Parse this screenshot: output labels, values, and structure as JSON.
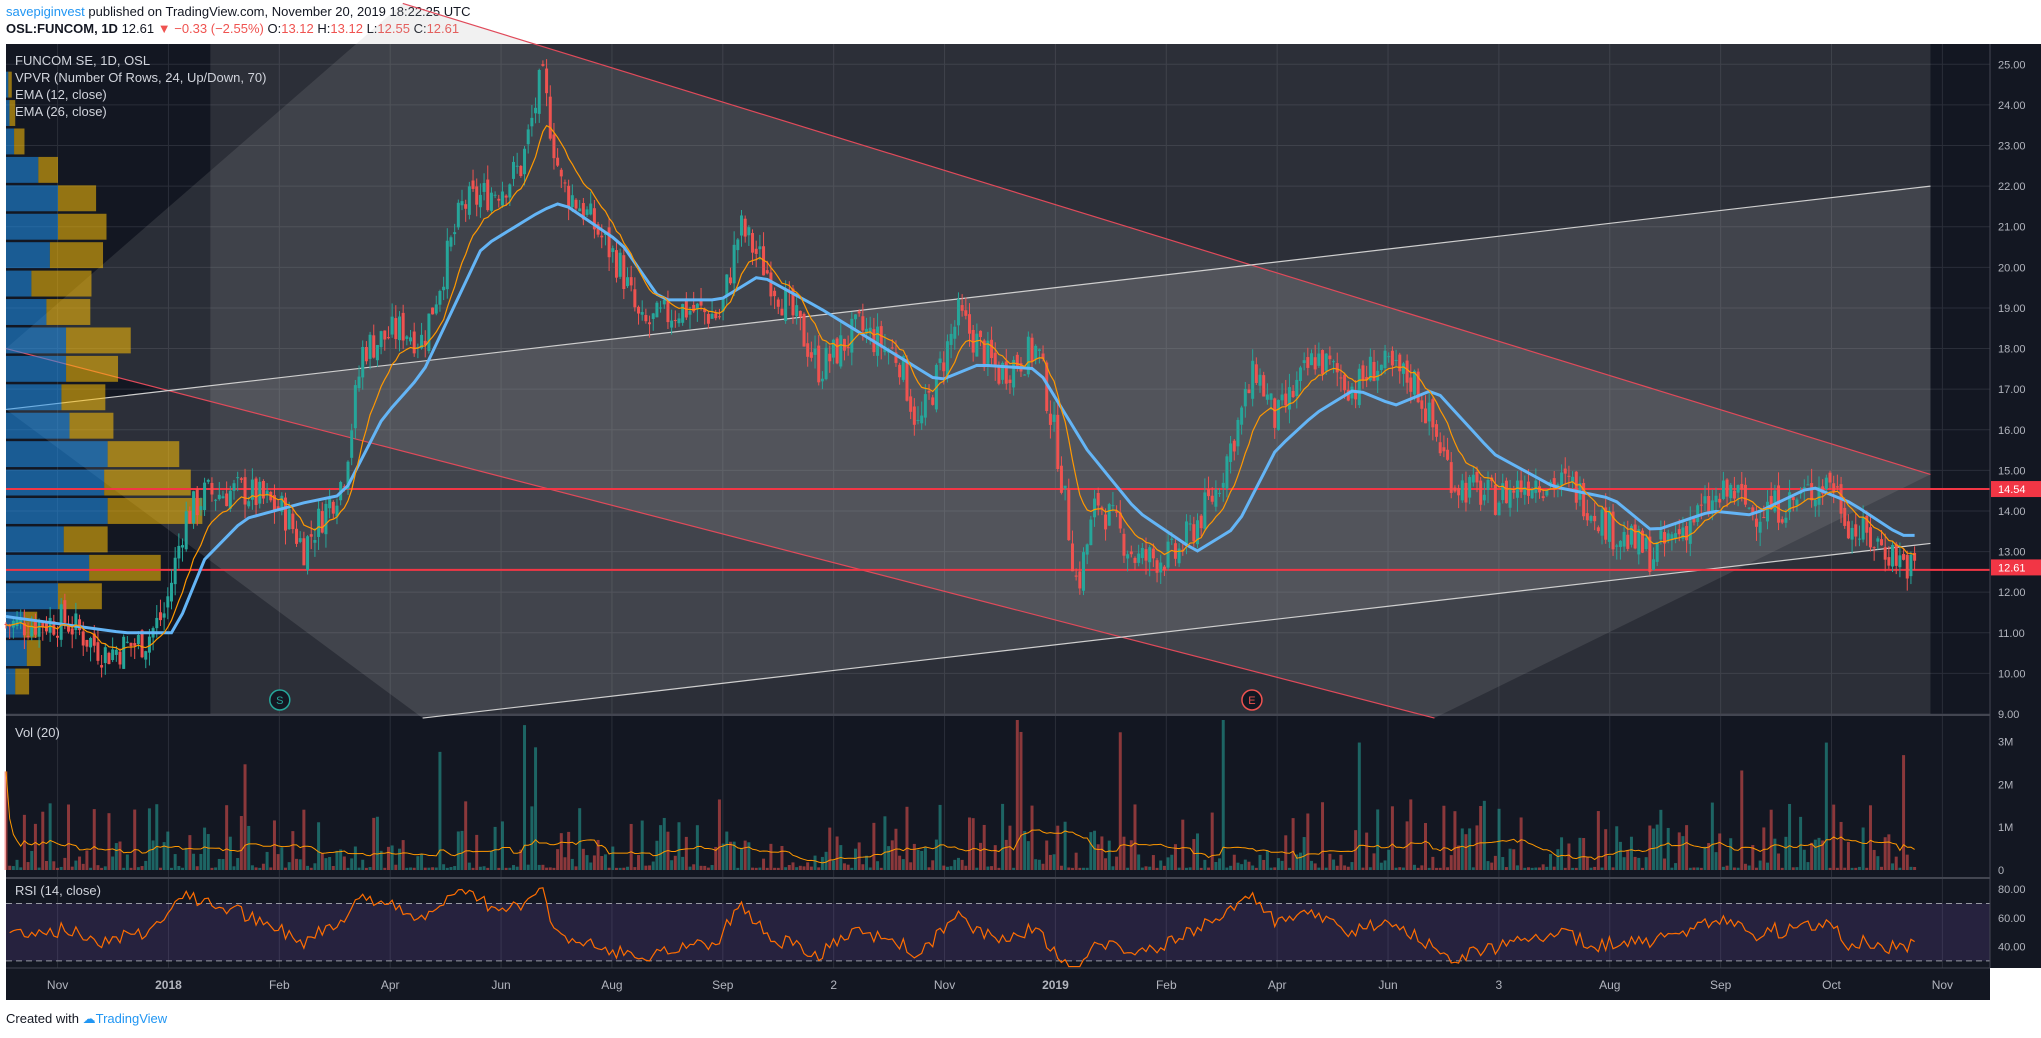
{
  "header": {
    "author": "savepiginvest",
    "published_text": "published on TradingView.com, November 20, 2019 18:22:25 UTC",
    "symbol": "OSL:FUNCOM, 1D",
    "last": "12.61",
    "change": "▼ −0.33 (−2.55%)",
    "ohlc": {
      "o_label": "O:",
      "o": "13.12",
      "h_label": "H:",
      "h": "13.12",
      "l_label": "L:",
      "l": "12.55",
      "c_label": "C:",
      "c": "12.61"
    }
  },
  "legend": {
    "title": "FUNCOM SE, 1D, OSL",
    "vpvr": "VPVR (Number Of Rows, 24, Up/Down, 70)",
    "ema12": "EMA (12, close)",
    "ema26": "EMA (26, close)",
    "vol": "Vol (20)",
    "rsi": "RSI (14, close)"
  },
  "footer": {
    "created": "Created with",
    "brand": "TradingView"
  },
  "colors": {
    "bg": "#131722",
    "up": "#26a69a",
    "down": "#ef5350",
    "ema12": "#ff9800",
    "ema26": "#64b5f6",
    "channel": "#e0e0e0",
    "red_line": "#f23645",
    "rsi": "#ff6d00",
    "rsi_band": "#7e57c2",
    "vpvr_up": "#2196f3",
    "vpvr_down": "#ffc107"
  },
  "chart_data": {
    "type": "candlestick",
    "symbol": "OSL:FUNCOM",
    "interval": "1D",
    "price_axis": {
      "ticks": [
        "25.00",
        "24.00",
        "23.00",
        "22.00",
        "21.00",
        "20.00",
        "19.00",
        "18.00",
        "17.00",
        "16.00",
        "15.00",
        "14.00",
        "13.00",
        "12.00",
        "11.00",
        "10.00",
        "9.00"
      ],
      "range": [
        9.0,
        25.5
      ]
    },
    "time_axis": {
      "labels": [
        "Nov",
        "2018",
        "Feb",
        "Apr",
        "Jun",
        "Aug",
        "Sep",
        "2",
        "Nov",
        "2019",
        "Feb",
        "Apr",
        "Jun",
        "3",
        "Aug",
        "Sep",
        "Oct",
        "Nov"
      ]
    },
    "price_labels": [
      {
        "value": 14.54,
        "text": "14.54"
      },
      {
        "value": 12.61,
        "text": "12.61"
      }
    ],
    "horizontal_lines": [
      14.54,
      12.55
    ],
    "close_path": [
      {
        "t": 0.0,
        "c": 11.2
      },
      {
        "t": 0.03,
        "c": 11.3
      },
      {
        "t": 0.05,
        "c": 10.5
      },
      {
        "t": 0.07,
        "c": 10.8
      },
      {
        "t": 0.08,
        "c": 11.5
      },
      {
        "t": 0.09,
        "c": 13.8
      },
      {
        "t": 0.1,
        "c": 14.4
      },
      {
        "t": 0.12,
        "c": 14.5
      },
      {
        "t": 0.14,
        "c": 14.0
      },
      {
        "t": 0.15,
        "c": 13.1
      },
      {
        "t": 0.17,
        "c": 14.8
      },
      {
        "t": 0.18,
        "c": 18.0
      },
      {
        "t": 0.2,
        "c": 18.5
      },
      {
        "t": 0.21,
        "c": 18.2
      },
      {
        "t": 0.23,
        "c": 21.5
      },
      {
        "t": 0.25,
        "c": 22.0
      },
      {
        "t": 0.26,
        "c": 22.5
      },
      {
        "t": 0.27,
        "c": 24.7
      },
      {
        "t": 0.28,
        "c": 22.0
      },
      {
        "t": 0.29,
        "c": 21.5
      },
      {
        "t": 0.31,
        "c": 20.0
      },
      {
        "t": 0.32,
        "c": 18.5
      },
      {
        "t": 0.34,
        "c": 19.0
      },
      {
        "t": 0.36,
        "c": 18.8
      },
      {
        "t": 0.37,
        "c": 21.0
      },
      {
        "t": 0.38,
        "c": 20.2
      },
      {
        "t": 0.4,
        "c": 18.5
      },
      {
        "t": 0.41,
        "c": 17.5
      },
      {
        "t": 0.43,
        "c": 18.5
      },
      {
        "t": 0.45,
        "c": 17.8
      },
      {
        "t": 0.46,
        "c": 16.0
      },
      {
        "t": 0.48,
        "c": 18.8
      },
      {
        "t": 0.5,
        "c": 17.4
      },
      {
        "t": 0.52,
        "c": 18.0
      },
      {
        "t": 0.53,
        "c": 15.5
      },
      {
        "t": 0.54,
        "c": 12.1
      },
      {
        "t": 0.55,
        "c": 14.3
      },
      {
        "t": 0.57,
        "c": 12.8
      },
      {
        "t": 0.59,
        "c": 12.9
      },
      {
        "t": 0.61,
        "c": 14.5
      },
      {
        "t": 0.63,
        "c": 17.5
      },
      {
        "t": 0.64,
        "c": 16.2
      },
      {
        "t": 0.66,
        "c": 17.8
      },
      {
        "t": 0.68,
        "c": 17.0
      },
      {
        "t": 0.69,
        "c": 17.6
      },
      {
        "t": 0.71,
        "c": 17.2
      },
      {
        "t": 0.73,
        "c": 14.7
      },
      {
        "t": 0.75,
        "c": 14.3
      },
      {
        "t": 0.77,
        "c": 14.8
      },
      {
        "t": 0.79,
        "c": 14.6
      },
      {
        "t": 0.81,
        "c": 13.5
      },
      {
        "t": 0.83,
        "c": 12.9
      },
      {
        "t": 0.85,
        "c": 13.8
      },
      {
        "t": 0.87,
        "c": 14.5
      },
      {
        "t": 0.88,
        "c": 14.0
      },
      {
        "t": 0.9,
        "c": 14.2
      },
      {
        "t": 0.92,
        "c": 14.8
      },
      {
        "t": 0.93,
        "c": 13.6
      },
      {
        "t": 0.95,
        "c": 13.0
      },
      {
        "t": 0.96,
        "c": 12.61
      }
    ],
    "ema26_path": [
      {
        "t": 0.0,
        "c": 11.4
      },
      {
        "t": 0.06,
        "c": 11.0
      },
      {
        "t": 0.085,
        "c": 11.0
      },
      {
        "t": 0.1,
        "c": 12.8
      },
      {
        "t": 0.12,
        "c": 13.8
      },
      {
        "t": 0.15,
        "c": 14.2
      },
      {
        "t": 0.17,
        "c": 14.4
      },
      {
        "t": 0.19,
        "c": 16.3
      },
      {
        "t": 0.21,
        "c": 17.4
      },
      {
        "t": 0.24,
        "c": 20.5
      },
      {
        "t": 0.27,
        "c": 21.4
      },
      {
        "t": 0.28,
        "c": 21.6
      },
      {
        "t": 0.31,
        "c": 20.6
      },
      {
        "t": 0.33,
        "c": 19.2
      },
      {
        "t": 0.36,
        "c": 19.2
      },
      {
        "t": 0.38,
        "c": 19.8
      },
      {
        "t": 0.41,
        "c": 19.0
      },
      {
        "t": 0.44,
        "c": 18.1
      },
      {
        "t": 0.47,
        "c": 17.2
      },
      {
        "t": 0.49,
        "c": 17.6
      },
      {
        "t": 0.52,
        "c": 17.5
      },
      {
        "t": 0.545,
        "c": 15.5
      },
      {
        "t": 0.57,
        "c": 14.0
      },
      {
        "t": 0.6,
        "c": 13.0
      },
      {
        "t": 0.62,
        "c": 13.6
      },
      {
        "t": 0.64,
        "c": 15.5
      },
      {
        "t": 0.66,
        "c": 16.4
      },
      {
        "t": 0.68,
        "c": 17.0
      },
      {
        "t": 0.7,
        "c": 16.6
      },
      {
        "t": 0.72,
        "c": 17.0
      },
      {
        "t": 0.75,
        "c": 15.4
      },
      {
        "t": 0.78,
        "c": 14.6
      },
      {
        "t": 0.81,
        "c": 14.3
      },
      {
        "t": 0.83,
        "c": 13.5
      },
      {
        "t": 0.86,
        "c": 14.0
      },
      {
        "t": 0.88,
        "c": 13.9
      },
      {
        "t": 0.91,
        "c": 14.6
      },
      {
        "t": 0.93,
        "c": 14.2
      },
      {
        "t": 0.955,
        "c": 13.4
      }
    ],
    "channels": [
      {
        "name": "descending-channel",
        "upper": [
          {
            "t": 0.2,
            "c": 26.5
          },
          {
            "t": 0.97,
            "c": 14.9
          }
        ],
        "lower": [
          {
            "t": 0.0,
            "c": 18.0
          },
          {
            "t": 0.72,
            "c": 8.9
          }
        ]
      },
      {
        "name": "ascending-channel",
        "upper": [
          {
            "t": 0.0,
            "c": 16.5
          },
          {
            "t": 0.97,
            "c": 22.0
          }
        ],
        "lower": [
          {
            "t": 0.21,
            "c": 8.9
          },
          {
            "t": 0.97,
            "c": 13.2
          }
        ]
      }
    ],
    "events": [
      {
        "label": "S",
        "t": 0.138
      },
      {
        "label": "E",
        "t": 0.628
      }
    ],
    "volume": {
      "title": "Vol (20)",
      "ticks": [
        "3M",
        "2M",
        "1M",
        "0"
      ],
      "range": [
        0,
        3.5
      ]
    },
    "rsi": {
      "title": "RSI (14, close)",
      "ticks": [
        "80.00",
        "60.00",
        "40.00"
      ],
      "upper_band": 70,
      "lower_band": 30,
      "range": [
        25,
        85
      ]
    },
    "vpvr_profile": [
      {
        "price": 24.5,
        "up": 0.02,
        "down": 0.03
      },
      {
        "price": 23.8,
        "up": 0.03,
        "down": 0.05
      },
      {
        "price": 23.1,
        "up": 0.07,
        "down": 0.09
      },
      {
        "price": 22.4,
        "up": 0.28,
        "down": 0.17
      },
      {
        "price": 21.7,
        "up": 0.45,
        "down": 0.33
      },
      {
        "price": 21.0,
        "up": 0.45,
        "down": 0.42
      },
      {
        "price": 20.3,
        "up": 0.38,
        "down": 0.46
      },
      {
        "price": 19.6,
        "up": 0.22,
        "down": 0.52
      },
      {
        "price": 18.9,
        "up": 0.35,
        "down": 0.38
      },
      {
        "price": 18.2,
        "up": 0.52,
        "down": 0.56
      },
      {
        "price": 17.5,
        "up": 0.52,
        "down": 0.45
      },
      {
        "price": 16.8,
        "up": 0.48,
        "down": 0.38
      },
      {
        "price": 16.1,
        "up": 0.55,
        "down": 0.38
      },
      {
        "price": 15.4,
        "up": 0.88,
        "down": 0.62
      },
      {
        "price": 14.7,
        "up": 0.85,
        "down": 0.75
      },
      {
        "price": 14.0,
        "up": 0.88,
        "down": 0.82
      },
      {
        "price": 13.3,
        "up": 0.5,
        "down": 0.38
      },
      {
        "price": 12.6,
        "up": 0.72,
        "down": 0.62
      },
      {
        "price": 11.9,
        "up": 0.45,
        "down": 0.38
      },
      {
        "price": 11.2,
        "up": 0.15,
        "down": 0.12
      },
      {
        "price": 10.5,
        "up": 0.18,
        "down": 0.12
      },
      {
        "price": 9.8,
        "up": 0.08,
        "down": 0.12
      }
    ]
  }
}
